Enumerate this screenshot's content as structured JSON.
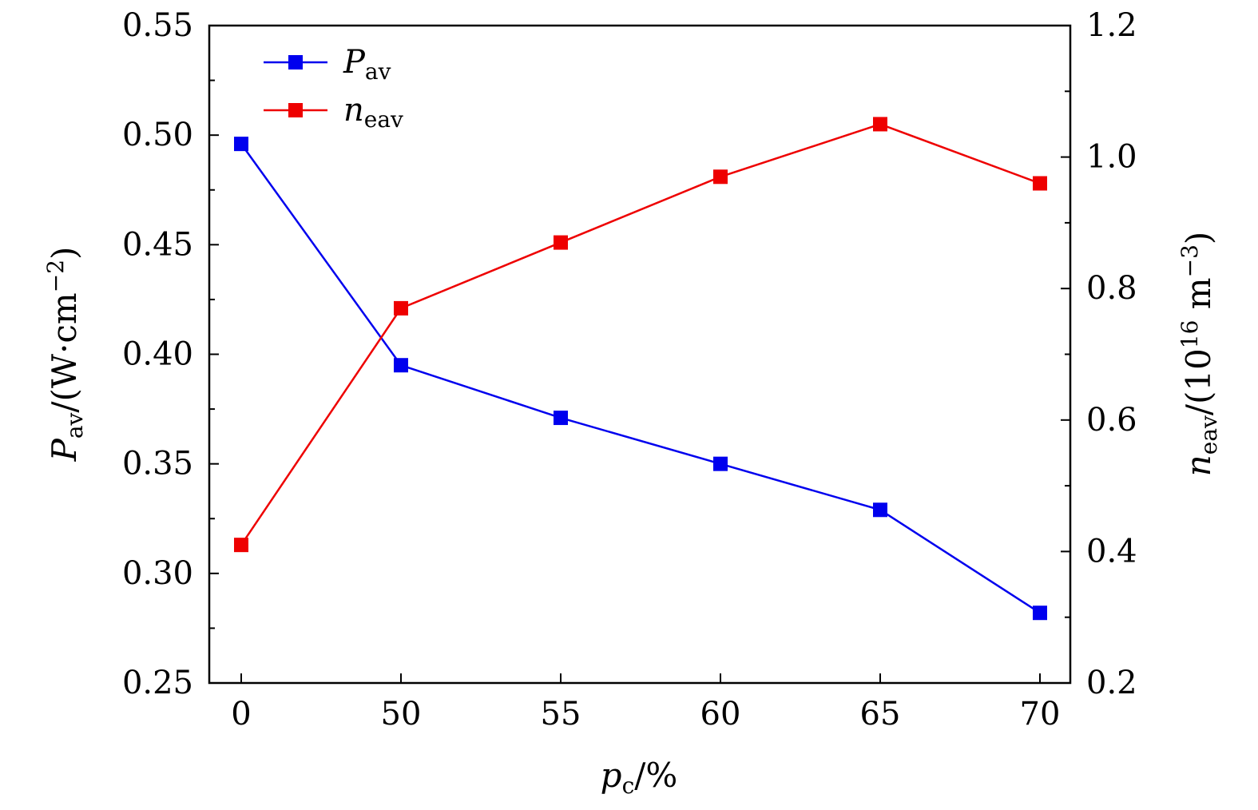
{
  "chart_data": {
    "type": "line",
    "categories": [
      "0",
      "50",
      "55",
      "60",
      "65",
      "70"
    ],
    "x_label": "p_c/%",
    "y_left": {
      "label": "P_av/(W·cm^−2)",
      "range": [
        0.25,
        0.55
      ],
      "ticks": [
        "0.25",
        "0.30",
        "0.35",
        "0.40",
        "0.45",
        "0.50",
        "0.55"
      ]
    },
    "y_right": {
      "label": "n_eav/(10^16 m^−3)",
      "range": [
        0.2,
        1.2
      ],
      "ticks": [
        "0.2",
        "0.4",
        "0.6",
        "0.8",
        "1.0",
        "1.2"
      ]
    },
    "series": [
      {
        "name": "P_av",
        "axis": "left",
        "color": "#0000ee",
        "marker": "square",
        "values": [
          0.496,
          0.395,
          0.371,
          0.35,
          0.329,
          0.282
        ]
      },
      {
        "name": "n_eav",
        "axis": "right",
        "color": "#ee0000",
        "marker": "square",
        "values": [
          0.41,
          0.77,
          0.87,
          0.97,
          1.05,
          0.96
        ]
      }
    ],
    "legend": {
      "position": "top-left",
      "entries": [
        {
          "main": "P",
          "sub": "av"
        },
        {
          "main": "n",
          "sub": "eav"
        }
      ]
    },
    "axis_text": {
      "x": {
        "main": "p",
        "sub": "c",
        "tail": "/%"
      },
      "y_left": {
        "main": "P",
        "sub": "av",
        "tail": "/(W·cm",
        "sup": "−2",
        "close": ")"
      },
      "y_right": {
        "main": "n",
        "sub": "eav",
        "tail": "/(10",
        "sup": "16",
        "unit": " m",
        "sup2": "−3",
        "close": ")"
      }
    }
  }
}
